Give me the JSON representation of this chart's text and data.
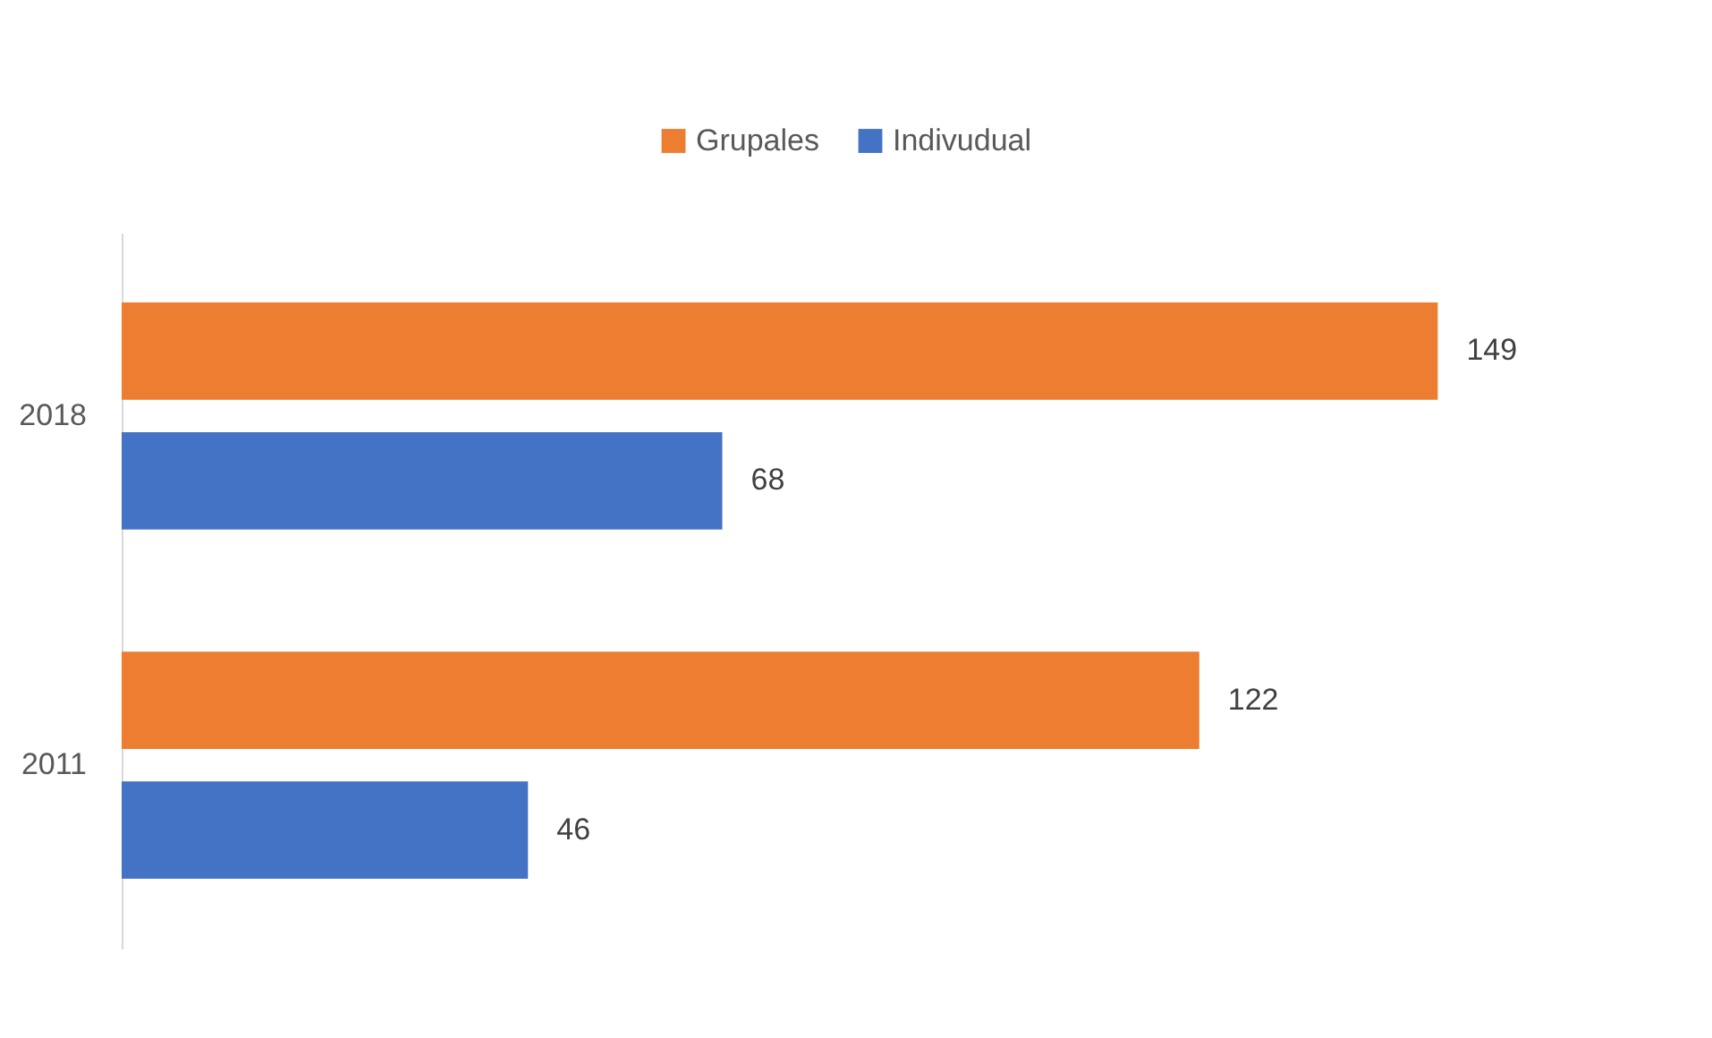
{
  "chart_data": {
    "type": "bar",
    "orientation": "horizontal",
    "categories": [
      "2018",
      "2011"
    ],
    "series": [
      {
        "name": "Grupales",
        "color": "#ed7d31",
        "values": [
          149,
          122
        ]
      },
      {
        "name": "Indivudual",
        "color": "#4472c4",
        "values": [
          68,
          46
        ]
      }
    ],
    "data_labels": true,
    "legend": "top"
  }
}
